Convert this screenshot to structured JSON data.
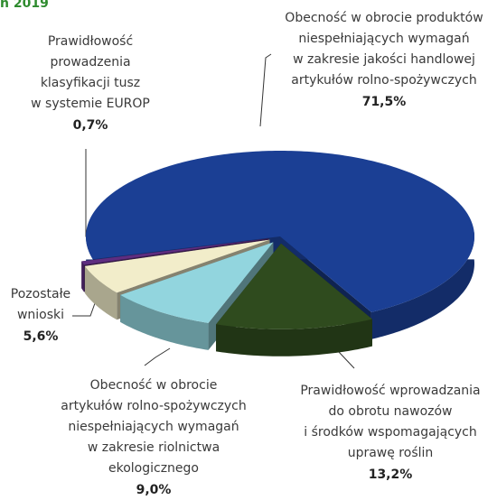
{
  "chart_data": {
    "type": "pie3d",
    "title": "n 2019",
    "categories": [
      [
        "Obecność w obrocie produktów",
        "niespełniających wymagań",
        "w zakresie jakości handlowej",
        "artykułów rolno-spożywczych"
      ],
      [
        "Prawidłowość wprowadzania",
        "do obrotu nawozów",
        "i środków wspomagających",
        "uprawę roślin"
      ],
      [
        "Obecność w obrocie",
        "artykułów rolno-spożywczych",
        "niespełniających wymagań",
        "w zakresie riolnictwa",
        "ekologicznego"
      ],
      [
        "Pozostałe",
        "wnioski"
      ],
      [
        "Prawidłowość",
        "prowadzenia",
        "klasyfikacji tusz",
        "w systemie EUROP"
      ]
    ],
    "values": [
      71.5,
      13.2,
      9.0,
      5.6,
      0.7
    ],
    "value_labels": [
      "71,5%",
      "13,2%",
      "9,0%",
      "5,6%",
      "0,7%"
    ],
    "colors": [
      "#1b3f94",
      "#2f4b1e",
      "#92d5de",
      "#f2edca",
      "#5e2d80"
    ]
  }
}
